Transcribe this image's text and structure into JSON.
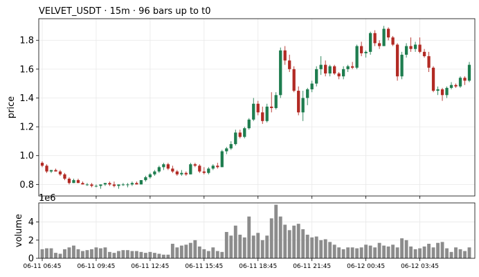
{
  "chart_data": {
    "type": "candlestick",
    "title": "VELVET_USDT  ·  15m  ·  96 bars up to t0",
    "price_axis": {
      "label": "price",
      "ylim": [
        0.72,
        1.95
      ],
      "ticks": [
        "0.8",
        "1.0",
        "1.2",
        "1.4",
        "1.6",
        "1.8"
      ]
    },
    "volume_axis": {
      "label": "volume",
      "scale_label": "1e6",
      "ylim": [
        0,
        6.1
      ],
      "ticks": [
        "0",
        "2",
        "4"
      ]
    },
    "x_labels": [
      "06-11 06:45",
      "06-11 09:45",
      "06-11 12:45",
      "06-11 15:45",
      "06-11 18:45",
      "06-11 21:45",
      "06-12 00:45",
      "06-12 03:45"
    ],
    "grid": true,
    "colors": {
      "up": "#1e7d4f",
      "down": "#b22a24",
      "volume": "#8c8c8c",
      "grid": "#e8e8e8"
    },
    "ohlc": [
      [
        0.95,
        0.96,
        0.92,
        0.93
      ],
      [
        0.93,
        0.94,
        0.88,
        0.89
      ],
      [
        0.89,
        0.9,
        0.88,
        0.9
      ],
      [
        0.9,
        0.91,
        0.89,
        0.89
      ],
      [
        0.89,
        0.9,
        0.86,
        0.87
      ],
      [
        0.87,
        0.88,
        0.83,
        0.84
      ],
      [
        0.84,
        0.85,
        0.8,
        0.81
      ],
      [
        0.81,
        0.84,
        0.81,
        0.83
      ],
      [
        0.83,
        0.84,
        0.81,
        0.81
      ],
      [
        0.81,
        0.82,
        0.8,
        0.8
      ],
      [
        0.8,
        0.81,
        0.79,
        0.8
      ],
      [
        0.8,
        0.81,
        0.78,
        0.79
      ],
      [
        0.79,
        0.8,
        0.78,
        0.79
      ],
      [
        0.79,
        0.8,
        0.77,
        0.8
      ],
      [
        0.8,
        0.81,
        0.79,
        0.81
      ],
      [
        0.81,
        0.82,
        0.79,
        0.8
      ],
      [
        0.8,
        0.82,
        0.78,
        0.79
      ],
      [
        0.79,
        0.8,
        0.77,
        0.8
      ],
      [
        0.8,
        0.81,
        0.79,
        0.8
      ],
      [
        0.8,
        0.81,
        0.78,
        0.8
      ],
      [
        0.8,
        0.82,
        0.79,
        0.81
      ],
      [
        0.81,
        0.82,
        0.8,
        0.8
      ],
      [
        0.8,
        0.83,
        0.8,
        0.83
      ],
      [
        0.83,
        0.86,
        0.82,
        0.85
      ],
      [
        0.85,
        0.88,
        0.84,
        0.87
      ],
      [
        0.87,
        0.9,
        0.86,
        0.89
      ],
      [
        0.89,
        0.93,
        0.88,
        0.92
      ],
      [
        0.92,
        0.95,
        0.9,
        0.94
      ],
      [
        0.94,
        0.95,
        0.9,
        0.91
      ],
      [
        0.91,
        0.93,
        0.88,
        0.89
      ],
      [
        0.89,
        0.9,
        0.86,
        0.87
      ],
      [
        0.87,
        0.9,
        0.86,
        0.88
      ],
      [
        0.88,
        0.89,
        0.86,
        0.87
      ],
      [
        0.87,
        0.95,
        0.87,
        0.94
      ],
      [
        0.94,
        0.95,
        0.92,
        0.93
      ],
      [
        0.93,
        0.94,
        0.88,
        0.89
      ],
      [
        0.89,
        0.92,
        0.87,
        0.88
      ],
      [
        0.88,
        0.92,
        0.87,
        0.91
      ],
      [
        0.91,
        0.94,
        0.9,
        0.93
      ],
      [
        0.93,
        0.95,
        0.91,
        0.92
      ],
      [
        0.92,
        1.04,
        0.92,
        1.03
      ],
      [
        1.03,
        1.06,
        1.01,
        1.05
      ],
      [
        1.05,
        1.1,
        1.04,
        1.08
      ],
      [
        1.08,
        1.18,
        1.07,
        1.16
      ],
      [
        1.16,
        1.18,
        1.12,
        1.13
      ],
      [
        1.13,
        1.2,
        1.12,
        1.19
      ],
      [
        1.19,
        1.26,
        1.18,
        1.25
      ],
      [
        1.25,
        1.4,
        1.24,
        1.36
      ],
      [
        1.36,
        1.38,
        1.28,
        1.3
      ],
      [
        1.3,
        1.34,
        1.22,
        1.24
      ],
      [
        1.24,
        1.36,
        1.23,
        1.34
      ],
      [
        1.34,
        1.44,
        1.3,
        1.33
      ],
      [
        1.33,
        1.44,
        1.32,
        1.42
      ],
      [
        1.42,
        1.75,
        1.4,
        1.73
      ],
      [
        1.73,
        1.76,
        1.63,
        1.66
      ],
      [
        1.66,
        1.7,
        1.58,
        1.6
      ],
      [
        1.6,
        1.62,
        1.44,
        1.45
      ],
      [
        1.45,
        1.48,
        1.28,
        1.3
      ],
      [
        1.3,
        1.45,
        1.24,
        1.4
      ],
      [
        1.4,
        1.47,
        1.35,
        1.46
      ],
      [
        1.46,
        1.52,
        1.44,
        1.5
      ],
      [
        1.5,
        1.62,
        1.48,
        1.6
      ],
      [
        1.6,
        1.69,
        1.56,
        1.63
      ],
      [
        1.63,
        1.66,
        1.55,
        1.57
      ],
      [
        1.57,
        1.63,
        1.55,
        1.62
      ],
      [
        1.62,
        1.63,
        1.56,
        1.57
      ],
      [
        1.57,
        1.58,
        1.53,
        1.55
      ],
      [
        1.55,
        1.62,
        1.53,
        1.6
      ],
      [
        1.6,
        1.63,
        1.58,
        1.62
      ],
      [
        1.62,
        1.65,
        1.6,
        1.61
      ],
      [
        1.61,
        1.77,
        1.6,
        1.76
      ],
      [
        1.76,
        1.79,
        1.69,
        1.71
      ],
      [
        1.71,
        1.73,
        1.68,
        1.72
      ],
      [
        1.72,
        1.86,
        1.7,
        1.85
      ],
      [
        1.85,
        1.87,
        1.76,
        1.78
      ],
      [
        1.78,
        1.8,
        1.74,
        1.76
      ],
      [
        1.76,
        1.9,
        1.76,
        1.88
      ],
      [
        1.88,
        1.89,
        1.8,
        1.82
      ],
      [
        1.82,
        1.83,
        1.76,
        1.77
      ],
      [
        1.77,
        1.78,
        1.52,
        1.55
      ],
      [
        1.55,
        1.72,
        1.53,
        1.7
      ],
      [
        1.7,
        1.78,
        1.68,
        1.76
      ],
      [
        1.76,
        1.82,
        1.72,
        1.74
      ],
      [
        1.74,
        1.79,
        1.72,
        1.77
      ],
      [
        1.77,
        1.82,
        1.71,
        1.72
      ],
      [
        1.72,
        1.74,
        1.68,
        1.69
      ],
      [
        1.69,
        1.72,
        1.58,
        1.61
      ],
      [
        1.61,
        1.62,
        1.44,
        1.45
      ],
      [
        1.45,
        1.48,
        1.42,
        1.46
      ],
      [
        1.46,
        1.47,
        1.38,
        1.42
      ],
      [
        1.42,
        1.48,
        1.4,
        1.47
      ],
      [
        1.47,
        1.51,
        1.46,
        1.49
      ],
      [
        1.49,
        1.5,
        1.47,
        1.48
      ],
      [
        1.48,
        1.55,
        1.47,
        1.54
      ],
      [
        1.54,
        1.55,
        1.49,
        1.52
      ],
      [
        1.52,
        1.65,
        1.51,
        1.63
      ]
    ],
    "volume": [
      1.0,
      1.1,
      1.1,
      0.6,
      0.5,
      1.0,
      1.2,
      1.4,
      1.0,
      0.8,
      0.9,
      1.0,
      1.2,
      1.1,
      1.2,
      0.7,
      0.6,
      0.8,
      0.9,
      0.9,
      0.8,
      0.8,
      0.7,
      0.6,
      0.7,
      0.6,
      0.5,
      0.4,
      0.4,
      1.6,
      1.2,
      1.4,
      1.5,
      1.7,
      2.0,
      1.3,
      1.0,
      0.8,
      1.2,
      0.8,
      0.7,
      2.9,
      2.5,
      3.6,
      2.6,
      2.3,
      4.6,
      2.5,
      2.8,
      2.0,
      2.5,
      4.4,
      5.9,
      4.6,
      3.7,
      3.1,
      3.6,
      3.8,
      3.2,
      2.6,
      2.3,
      2.4,
      2.0,
      2.1,
      1.8,
      1.5,
      1.2,
      1.0,
      1.2,
      1.2,
      1.1,
      1.2,
      1.5,
      1.4,
      1.2,
      1.7,
      1.4,
      1.3,
      1.5,
      1.2,
      2.2,
      2.0,
      1.3,
      1.0,
      1.1,
      1.3,
      1.6,
      1.2,
      1.7,
      1.8,
      1.1,
      0.7,
      1.2,
      1.0,
      0.8,
      1.2
    ]
  }
}
